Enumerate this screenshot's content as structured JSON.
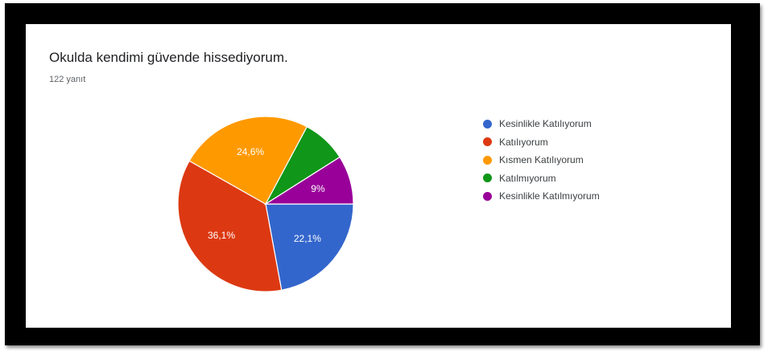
{
  "header": {
    "title": "Okulda kendimi güvende hissediyorum.",
    "response_count": "122 yanıt"
  },
  "chart_data": {
    "type": "pie",
    "title": "Okulda kendimi güvende hissediyorum.",
    "subtitle": "122 yanıt",
    "legend_position": "right",
    "slices": [
      {
        "name": "Kesinlikle Katılıyorum",
        "value": 22.1,
        "label": "22,1%",
        "color": "#3366cc"
      },
      {
        "name": "Katılıyorum",
        "value": 36.1,
        "label": "36,1%",
        "color": "#dc3912"
      },
      {
        "name": "Kısmen Katılıyorum",
        "value": 24.6,
        "label": "24,6%",
        "color": "#ff9900"
      },
      {
        "name": "Katılmıyorum",
        "value": 8.2,
        "label": "",
        "color": "#109618"
      },
      {
        "name": "Kesinlikle Katılmıyorum",
        "value": 9.0,
        "label": "9%",
        "color": "#990099"
      }
    ]
  }
}
